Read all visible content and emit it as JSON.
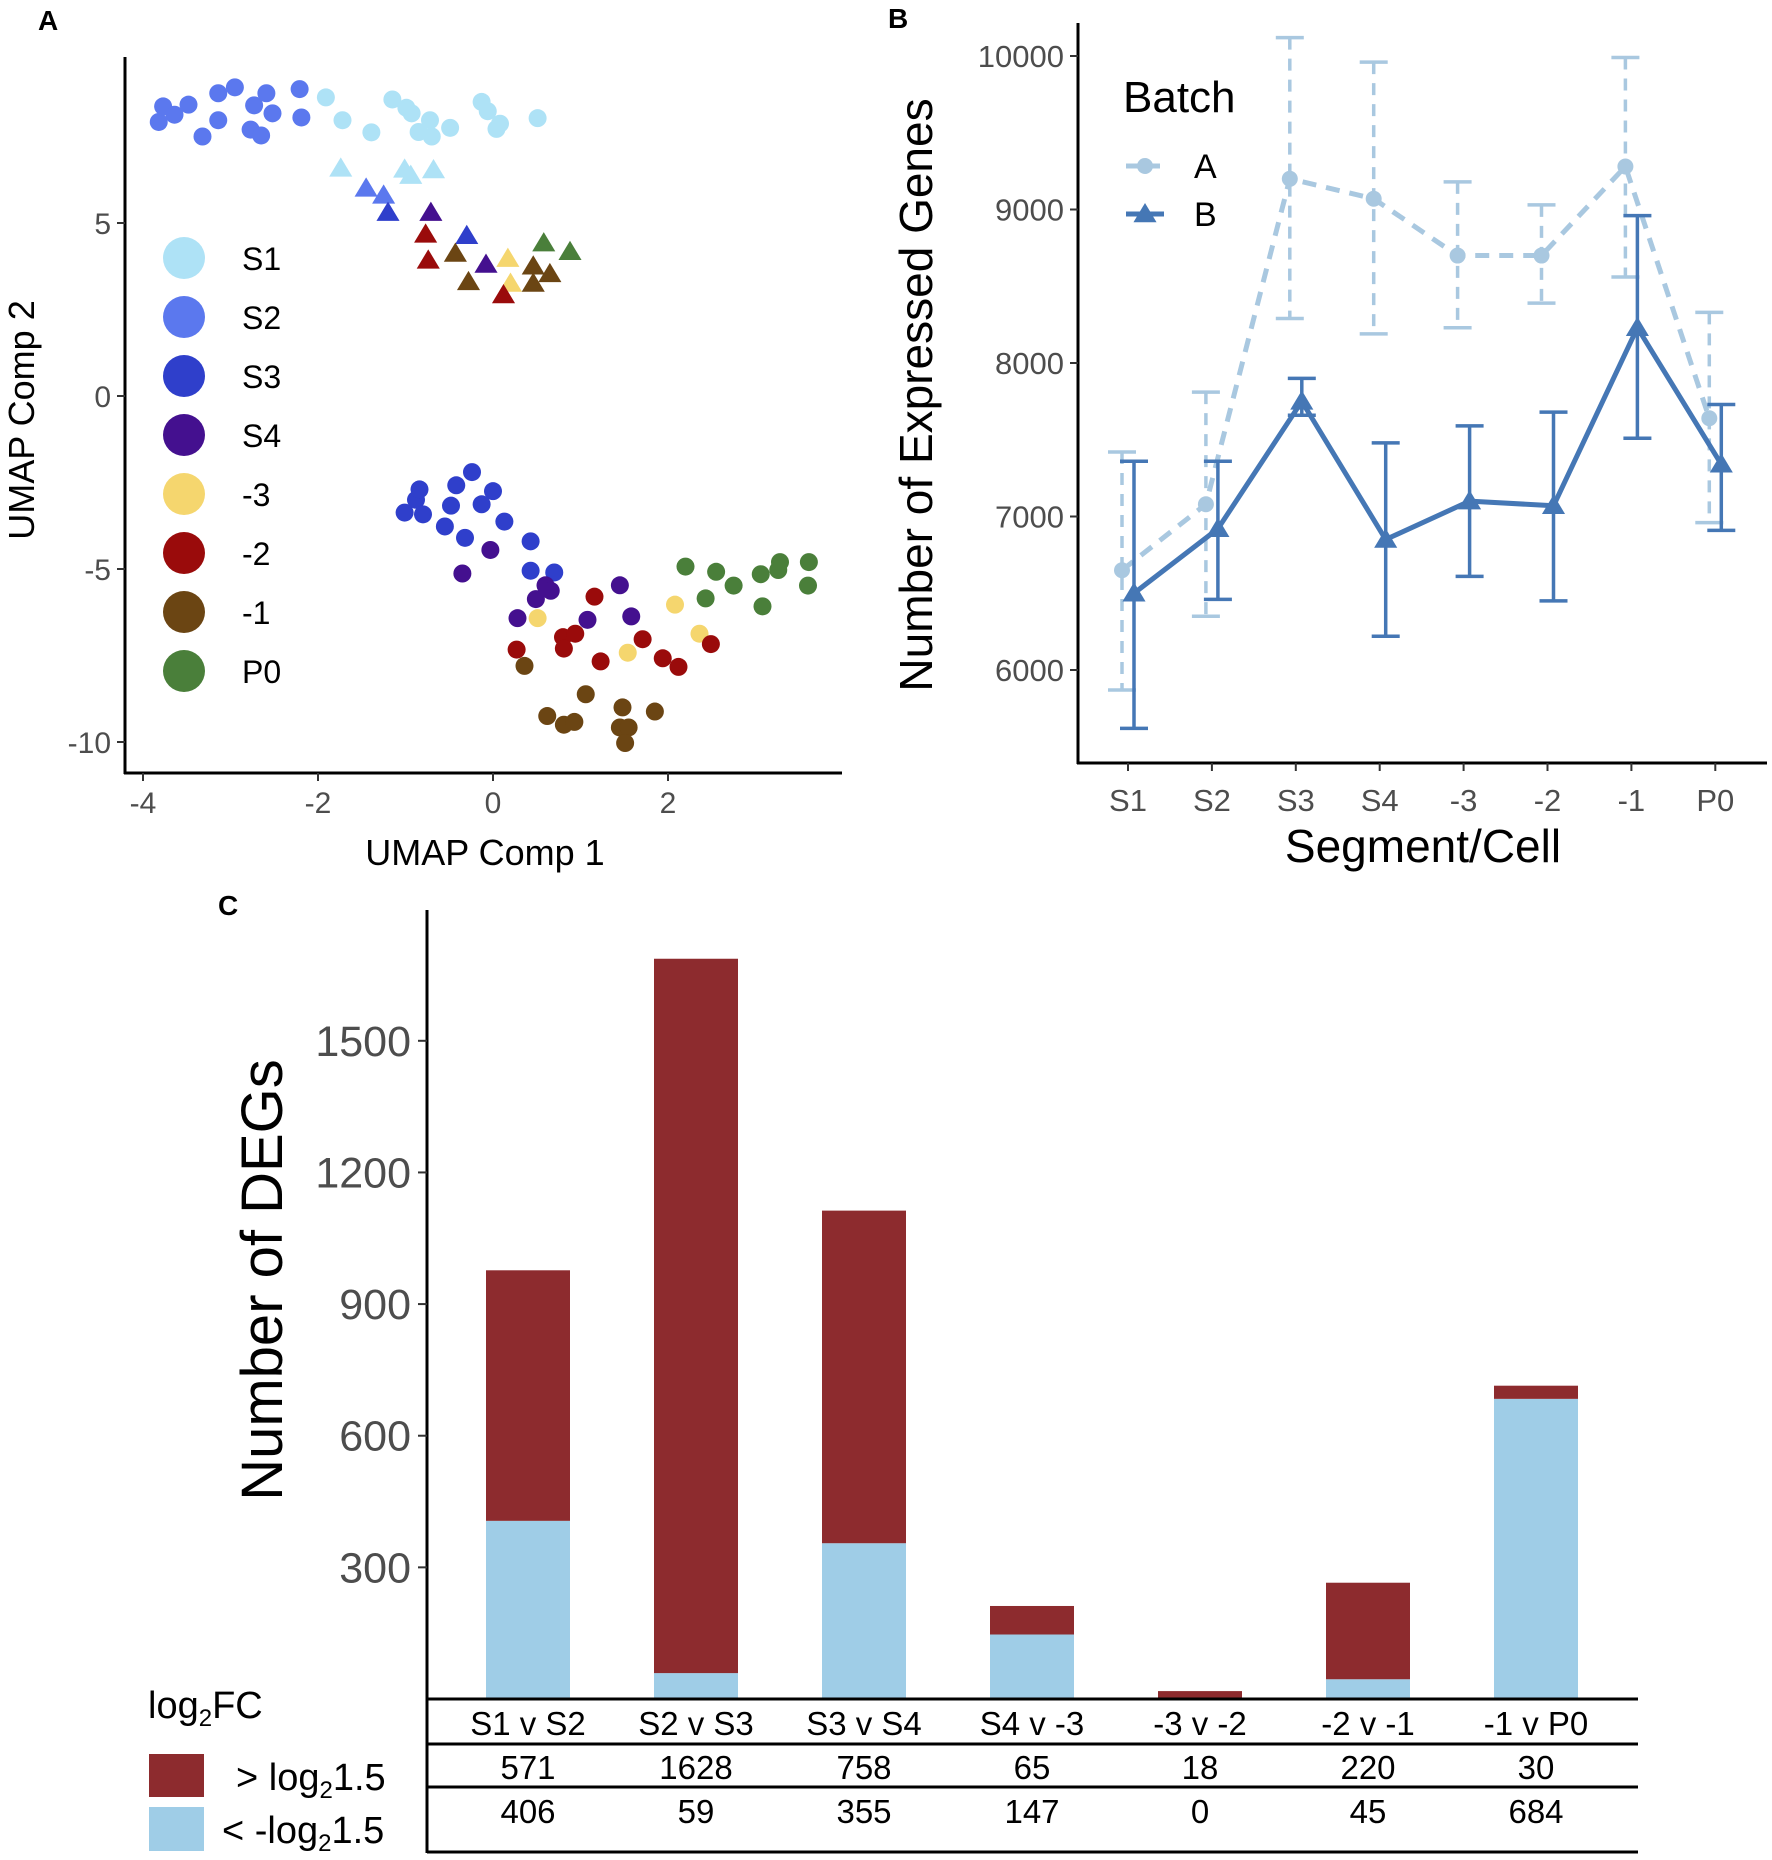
{
  "chart_data": [
    {
      "panel": "A",
      "type": "scatter",
      "xlabel": "UMAP Comp 1",
      "ylabel": "UMAP Comp 2",
      "xlim": [
        -4.2,
        4.0
      ],
      "ylim": [
        -10.9,
        9.8
      ],
      "xticks": [
        "-4",
        "-2",
        "0",
        "2"
      ],
      "xtick_values": [
        -4,
        -2,
        0,
        2
      ],
      "yticks": [
        "-10",
        "-5",
        "0",
        "5"
      ],
      "ytick_values": [
        -10,
        -5,
        0,
        5
      ],
      "legend_position": "left-inside",
      "series": [
        {
          "name": "S1",
          "color": "#aee2f6",
          "circles": [
            [
              -1.91,
              8.63
            ],
            [
              -1.72,
              7.97
            ],
            [
              -1.39,
              7.62
            ],
            [
              -1.15,
              8.57
            ],
            [
              -0.99,
              8.33
            ],
            [
              -0.93,
              8.17
            ],
            [
              -0.85,
              7.63
            ],
            [
              -0.72,
              7.97
            ],
            [
              -0.7,
              7.5
            ],
            [
              -0.49,
              7.75
            ],
            [
              -0.13,
              8.5
            ],
            [
              -0.06,
              8.23
            ],
            [
              0.04,
              7.72
            ],
            [
              0.08,
              7.87
            ],
            [
              0.51,
              8.03
            ]
          ],
          "triangles": [
            [
              -1.74,
              6.58
            ],
            [
              -1.01,
              6.55
            ],
            [
              -0.94,
              6.37
            ],
            [
              -0.68,
              6.53
            ]
          ]
        },
        {
          "name": "S2",
          "color": "#5b78ee",
          "circles": [
            [
              -3.82,
              7.92
            ],
            [
              -3.77,
              8.37
            ],
            [
              -3.64,
              8.13
            ],
            [
              -3.48,
              8.42
            ],
            [
              -3.32,
              7.5
            ],
            [
              -3.14,
              8.75
            ],
            [
              -3.14,
              7.97
            ],
            [
              -2.95,
              8.92
            ],
            [
              -2.77,
              7.7
            ],
            [
              -2.73,
              8.4
            ],
            [
              -2.65,
              7.53
            ],
            [
              -2.59,
              8.75
            ],
            [
              -2.52,
              8.17
            ],
            [
              -2.21,
              8.87
            ],
            [
              -2.19,
              8.05
            ]
          ],
          "triangles": [
            [
              -1.45,
              6.0
            ],
            [
              -1.25,
              5.8
            ]
          ]
        },
        {
          "name": "S3",
          "color": "#2f3fcb",
          "circles": [
            [
              -1.01,
              -3.37
            ],
            [
              -0.88,
              -3.0
            ],
            [
              -0.84,
              -2.7
            ],
            [
              -0.8,
              -3.42
            ],
            [
              -0.55,
              -3.77
            ],
            [
              -0.42,
              -2.58
            ],
            [
              -0.48,
              -3.17
            ],
            [
              -0.32,
              -4.1
            ],
            [
              -0.24,
              -2.2
            ],
            [
              -0.13,
              -3.13
            ],
            [
              0.0,
              -2.75
            ],
            [
              0.13,
              -3.63
            ],
            [
              0.43,
              -4.2
            ],
            [
              0.43,
              -5.05
            ],
            [
              0.7,
              -5.1
            ]
          ],
          "triangles": [
            [
              -1.2,
              5.3
            ],
            [
              -0.3,
              4.63
            ]
          ]
        },
        {
          "name": "S4",
          "color": "#44108f",
          "circles": [
            [
              -0.35,
              -5.13
            ],
            [
              -0.03,
              -4.45
            ],
            [
              0.28,
              -6.42
            ],
            [
              0.49,
              -5.87
            ],
            [
              0.6,
              -5.47
            ],
            [
              0.66,
              -5.63
            ],
            [
              1.08,
              -6.47
            ],
            [
              1.45,
              -5.47
            ],
            [
              1.58,
              -6.37
            ]
          ],
          "triangles": [
            [
              -0.71,
              5.3
            ],
            [
              -0.08,
              3.8
            ]
          ]
        },
        {
          "name": "-3",
          "color": "#f5d66e",
          "circles": [
            [
              0.51,
              -6.42
            ],
            [
              1.54,
              -7.42
            ],
            [
              2.08,
              -6.03
            ],
            [
              2.36,
              -6.87
            ]
          ],
          "triangles": [
            [
              0.17,
              3.97
            ],
            [
              0.2,
              3.25
            ]
          ]
        },
        {
          "name": "-2",
          "color": "#9a0b0b",
          "circles": [
            [
              0.27,
              -7.33
            ],
            [
              0.8,
              -6.97
            ],
            [
              0.94,
              -6.87
            ],
            [
              0.81,
              -7.3
            ],
            [
              1.16,
              -5.8
            ],
            [
              1.23,
              -7.67
            ],
            [
              1.71,
              -7.03
            ],
            [
              1.94,
              -7.58
            ],
            [
              2.12,
              -7.83
            ],
            [
              2.49,
              -7.17
            ]
          ],
          "triangles": [
            [
              -0.77,
              4.67
            ],
            [
              -0.74,
              3.92
            ],
            [
              0.12,
              2.92
            ]
          ]
        },
        {
          "name": "-1",
          "color": "#6b4513",
          "circles": [
            [
              0.36,
              -7.8
            ],
            [
              0.62,
              -9.25
            ],
            [
              0.81,
              -9.5
            ],
            [
              0.93,
              -9.42
            ],
            [
              1.06,
              -8.62
            ],
            [
              1.48,
              -9.0
            ],
            [
              1.45,
              -9.58
            ],
            [
              1.55,
              -9.58
            ],
            [
              1.51,
              -10.03
            ],
            [
              1.85,
              -9.12
            ]
          ],
          "triangles": [
            [
              -0.43,
              4.12
            ],
            [
              -0.28,
              3.3
            ],
            [
              0.46,
              3.75
            ],
            [
              0.46,
              3.25
            ],
            [
              0.65,
              3.53
            ]
          ]
        },
        {
          "name": "P0",
          "color": "#4a7f3a",
          "circles": [
            [
              2.2,
              -4.93
            ],
            [
              2.43,
              -5.85
            ],
            [
              2.55,
              -5.08
            ],
            [
              2.75,
              -5.48
            ],
            [
              3.06,
              -5.15
            ],
            [
              3.08,
              -6.08
            ],
            [
              3.26,
              -5.03
            ],
            [
              3.28,
              -4.8
            ],
            [
              3.61,
              -4.8
            ],
            [
              3.6,
              -5.48
            ]
          ],
          "triangles": [
            [
              0.58,
              4.42
            ],
            [
              0.88,
              4.17
            ]
          ]
        }
      ]
    },
    {
      "panel": "B",
      "type": "line",
      "xlabel": "Segment/Cell",
      "ylabel": "Number of Expressed Genes",
      "categories": [
        "S1",
        "S2",
        "S3",
        "S4",
        "-3",
        "-2",
        "-1",
        "P0"
      ],
      "ylim": [
        5394,
        10215
      ],
      "yticks": [
        "6000",
        "7000",
        "8000",
        "9000",
        "10000"
      ],
      "ytick_values": [
        6000,
        7000,
        8000,
        9000,
        10000
      ],
      "legend_title": "Batch",
      "legend_position": "top-left",
      "series": [
        {
          "name": "A",
          "color": "#a9c8e0",
          "style": "dashed",
          "marker": "circle",
          "values": [
            6650,
            7080,
            9200,
            9070,
            8700,
            8700,
            9280,
            7640
          ],
          "lower": [
            5870,
            6350,
            8290,
            8190,
            8230,
            8390,
            8560,
            6960
          ],
          "upper": [
            7420,
            7810,
            10120,
            9960,
            9180,
            9030,
            9990,
            8330
          ]
        },
        {
          "name": "B",
          "color": "#4577b5",
          "style": "solid",
          "marker": "triangle",
          "values": [
            6500,
            6920,
            7750,
            6850,
            7100,
            7070,
            8230,
            7340
          ],
          "lower": [
            5620,
            6460,
            7660,
            6220,
            6610,
            6450,
            7510,
            6910
          ],
          "upper": [
            7360,
            7360,
            7900,
            7480,
            7590,
            7680,
            8960,
            7730
          ]
        }
      ]
    },
    {
      "panel": "C",
      "type": "bar",
      "stacked": true,
      "ylabel": "Number of DEGs",
      "ylim": [
        0,
        1700
      ],
      "yticks": [
        "300",
        "600",
        "900",
        "1200",
        "1500"
      ],
      "ytick_values": [
        300,
        600,
        900,
        1200,
        1500
      ],
      "categories": [
        "S1 v S2",
        "S2 v S3",
        "S3 v S4",
        "S4 v -3",
        "-3 v -2",
        "-2 v -1",
        "-1 v P0"
      ],
      "legend_title_base": "log",
      "legend_title_sub": "2",
      "legend_title_rest": "FC",
      "legend_position": "bottom-left",
      "series": [
        {
          "name_prefix": "> log",
          "name_sub": "2",
          "name_suffix": "1.5",
          "color": "#8d2b2e",
          "values": [
            571,
            1628,
            758,
            65,
            18,
            220,
            30
          ]
        },
        {
          "name_prefix": "< -log",
          "name_sub": "2",
          "name_suffix": "1.5",
          "color": "#9fcde7",
          "values": [
            406,
            59,
            355,
            147,
            0,
            45,
            684
          ]
        }
      ],
      "table_rows": [
        [
          "571",
          "1628",
          "758",
          "65",
          "18",
          "220",
          "30"
        ],
        [
          "406",
          "59",
          "355",
          "147",
          "0",
          "45",
          "684"
        ]
      ]
    }
  ],
  "panel_labels": [
    "A",
    "B",
    "C"
  ]
}
